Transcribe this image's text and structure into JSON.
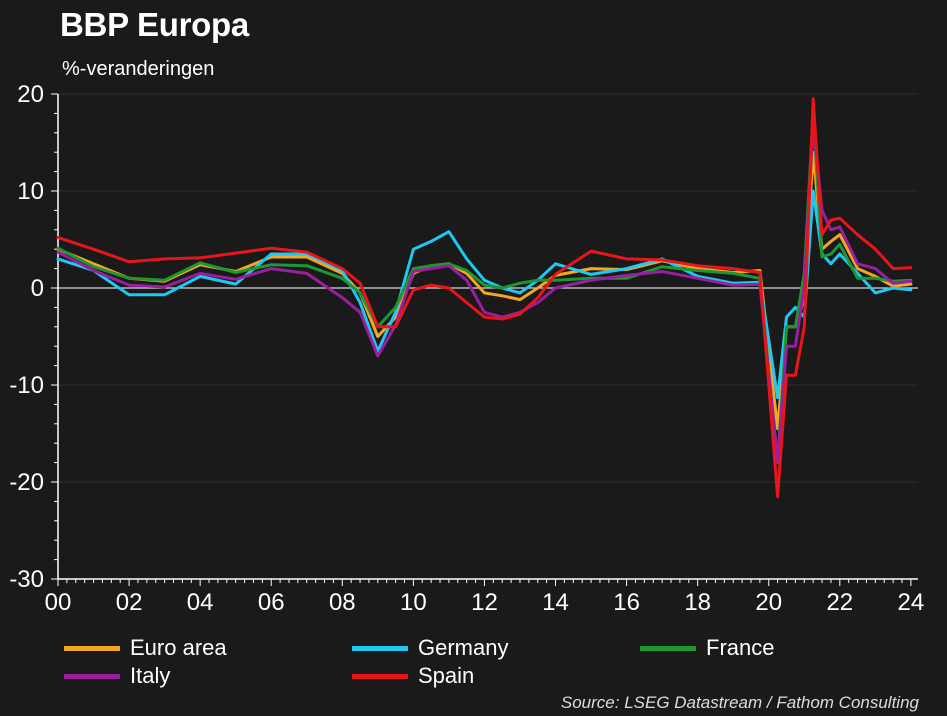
{
  "title": "BBP Europa",
  "subtitle": "%-veranderingen",
  "source": "Source: LSEG Datastream / Fathom Consulting",
  "chart_data": {
    "type": "line",
    "title": "BBP Europa",
    "subtitle": "%-veranderingen",
    "xlim": [
      2000,
      2024.2
    ],
    "ylim": [
      -30,
      20
    ],
    "y_ticks": [
      20,
      10,
      0,
      -10,
      -20,
      -30
    ],
    "x_ticks": [
      2000,
      2002,
      2004,
      2006,
      2008,
      2010,
      2012,
      2014,
      2016,
      2018,
      2020,
      2022,
      2024
    ],
    "x_tick_labels": [
      "00",
      "02",
      "04",
      "06",
      "08",
      "10",
      "12",
      "14",
      "16",
      "18",
      "20",
      "22",
      "24"
    ],
    "grid": "horizontal dark",
    "zero_line": true,
    "legend_position": "bottom",
    "x": [
      2000,
      2001,
      2002,
      2003,
      2004,
      2005,
      2006,
      2007,
      2008,
      2008.5,
      2009,
      2009.5,
      2010,
      2010.5,
      2011,
      2011.5,
      2012,
      2012.5,
      2013,
      2013.5,
      2014,
      2015,
      2016,
      2017,
      2018,
      2019,
      2019.75,
      2020.25,
      2020.5,
      2020.75,
      2021,
      2021.25,
      2021.5,
      2021.75,
      2022,
      2022.5,
      2023,
      2023.5,
      2024
    ],
    "series": [
      {
        "name": "Euro area",
        "color": "#f5a623",
        "values": [
          4.0,
          2.5,
          1.0,
          0.7,
          2.4,
          1.7,
          3.2,
          3.2,
          1.5,
          -0.5,
          -5.0,
          -3.0,
          1.5,
          2.3,
          2.5,
          1.5,
          -0.5,
          -0.8,
          -1.2,
          0.0,
          1.3,
          2.0,
          1.9,
          2.8,
          2.0,
          1.6,
          1.8,
          -14.5,
          -4.0,
          -4.0,
          -1.0,
          14.0,
          4.0,
          4.8,
          5.5,
          2.0,
          1.2,
          0.2,
          0.4
        ]
      },
      {
        "name": "Germany",
        "color": "#1fc8f0",
        "values": [
          3.0,
          1.8,
          -0.7,
          -0.7,
          1.2,
          0.4,
          3.5,
          3.5,
          1.8,
          -1.5,
          -6.5,
          -2.5,
          4.0,
          4.8,
          5.8,
          3.0,
          0.8,
          0.0,
          -0.5,
          0.8,
          2.5,
          1.4,
          2.0,
          3.0,
          1.2,
          0.5,
          0.6,
          -11.3,
          -3.0,
          -2.0,
          -3.0,
          10.0,
          3.5,
          2.5,
          3.5,
          1.5,
          -0.5,
          0.0,
          -0.2
        ]
      },
      {
        "name": "France",
        "color": "#1e9632",
        "values": [
          4.1,
          2.2,
          1.0,
          0.8,
          2.6,
          1.6,
          2.4,
          2.3,
          1.0,
          -0.5,
          -4.0,
          -2.0,
          2.0,
          2.3,
          2.5,
          1.8,
          0.3,
          0.0,
          0.5,
          0.8,
          0.8,
          1.0,
          1.0,
          2.2,
          1.8,
          1.5,
          1.0,
          -18.0,
          -4.0,
          -4.0,
          1.5,
          18.0,
          3.2,
          3.5,
          4.5,
          1.0,
          1.0,
          0.7,
          0.8
        ]
      },
      {
        "name": "Italy",
        "color": "#9a1ea0",
        "values": [
          3.7,
          1.8,
          0.3,
          0.1,
          1.5,
          0.9,
          2.0,
          1.5,
          -1.0,
          -2.5,
          -7.0,
          -3.8,
          1.7,
          2.0,
          2.3,
          0.8,
          -2.5,
          -3.0,
          -2.5,
          -1.5,
          0.0,
          0.8,
          1.3,
          1.7,
          1.0,
          0.3,
          0.4,
          -18.0,
          -6.0,
          -6.0,
          0.2,
          17.0,
          8.0,
          6.0,
          6.3,
          2.5,
          2.0,
          0.5,
          0.7
        ]
      },
      {
        "name": "Spain",
        "color": "#e8151b",
        "values": [
          5.2,
          4.0,
          2.7,
          3.0,
          3.1,
          3.6,
          4.1,
          3.7,
          2.0,
          0.5,
          -4.0,
          -4.0,
          -0.2,
          0.3,
          0.0,
          -1.5,
          -3.0,
          -3.2,
          -2.7,
          -1.0,
          1.4,
          3.8,
          3.0,
          2.9,
          2.3,
          2.0,
          1.6,
          -21.5,
          -9.0,
          -9.0,
          -4.0,
          19.5,
          5.5,
          7.0,
          7.2,
          5.5,
          4.0,
          2.0,
          2.1
        ]
      }
    ]
  }
}
